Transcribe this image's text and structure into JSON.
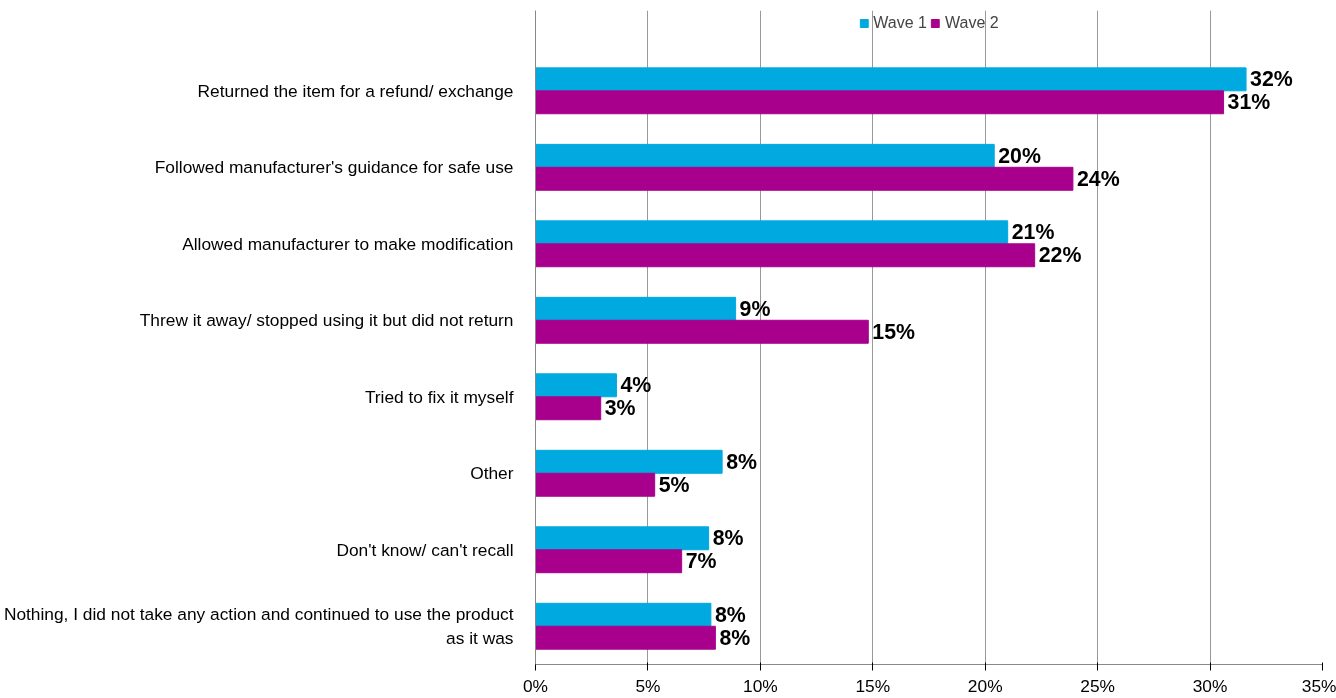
{
  "chart_data": {
    "type": "bar",
    "orientation": "horizontal",
    "categories": [
      "Returned the item for a refund/ exchange",
      "Followed manufacturer's guidance for safe use",
      "Allowed manufacturer to make modification",
      "Threw it away/ stopped using it but did not return",
      "Tried to fix it myself",
      "Other",
      "Don't know/ can't recall",
      "Nothing, I did not take any action and continued to use the product\nas it was"
    ],
    "series": [
      {
        "name": "Wave 1",
        "color": "#00a9e0",
        "values": [
          31.6,
          20.4,
          21,
          8.9,
          3.6,
          8.3,
          7.7,
          7.8
        ],
        "value_labels": [
          "32%",
          "20%",
          "21%",
          "9%",
          "4%",
          "8%",
          "8%",
          "8%"
        ]
      },
      {
        "name": "Wave 2",
        "color": "#a8008c",
        "values": [
          30.6,
          23.9,
          22.2,
          14.8,
          2.9,
          5.3,
          6.5,
          8
        ],
        "value_labels": [
          "31%",
          "24%",
          "22%",
          "15%",
          "3%",
          "5%",
          "7%",
          "8%"
        ]
      }
    ],
    "xlim": [
      0,
      35
    ],
    "xticks": [
      {
        "value": 0,
        "label": "0%"
      },
      {
        "value": 5,
        "label": "5%"
      },
      {
        "value": 10,
        "label": "10%"
      },
      {
        "value": 15,
        "label": "15%"
      },
      {
        "value": 20,
        "label": "20%"
      },
      {
        "value": 25,
        "label": "25%"
      },
      {
        "value": 30,
        "label": "30%"
      },
      {
        "value": 35,
        "label": "35%"
      }
    ],
    "grid": "x",
    "legend": "top"
  }
}
